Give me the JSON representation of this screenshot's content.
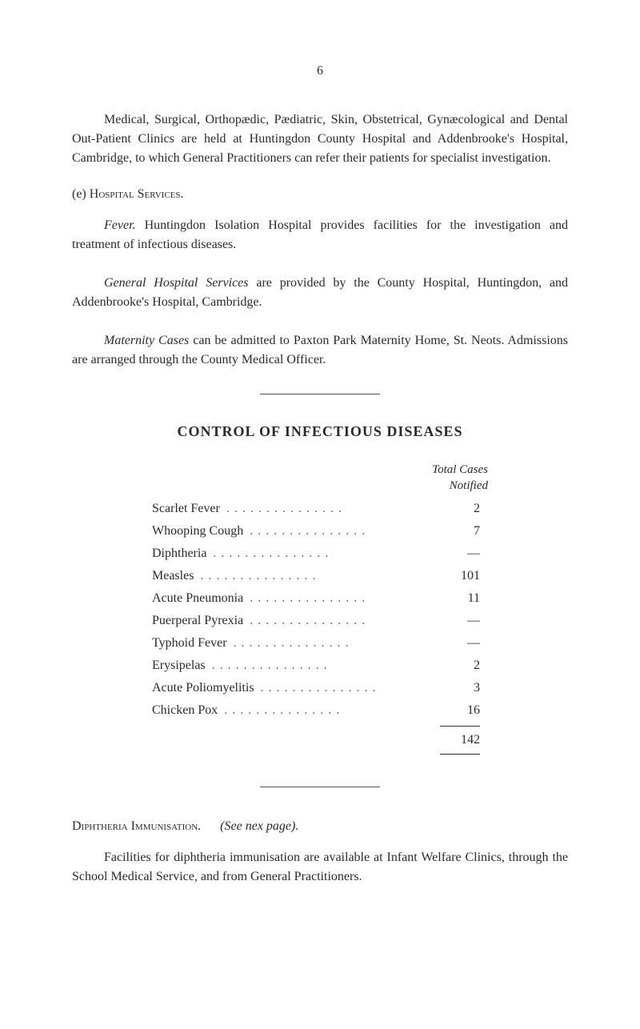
{
  "page_number": "6",
  "paragraphs": {
    "p1": "Medical, Surgical, Orthopædic, Pædiatric, Skin, Obstetrical, Gynæcological and Dental Out-Patient Clinics are held at Huntingdon County Hospital and Addenbrooke's Hospital, Cambridge, to which General Practitioners can refer their patients for specialist investigation.",
    "section_e_label": "(e)",
    "section_e_title": "Hospital Services.",
    "p2_lead": "Fever.",
    "p2_rest": "Huntingdon Isolation Hospital provides facilities for the investigation and treatment of infectious diseases.",
    "p3_lead": "General Hospital Services",
    "p3_rest": "are provided by the County Hospital, Huntingdon, and Addenbrooke's Hospital, Cambridge.",
    "p4_lead": "Maternity Cases",
    "p4_rest": "can be admitted to Paxton Park Maternity Home, St. Neots. Admissions are arranged through the County Medical Officer."
  },
  "heading": "CONTROL OF INFECTIOUS DISEASES",
  "table": {
    "header_line1": "Total Cases",
    "header_line2": "Notified",
    "rows": [
      {
        "label": "Scarlet Fever",
        "value": "2"
      },
      {
        "label": "Whooping Cough",
        "value": "7"
      },
      {
        "label": "Diphtheria",
        "value": "—"
      },
      {
        "label": "Measles",
        "value": "101"
      },
      {
        "label": "Acute Pneumonia",
        "value": "11"
      },
      {
        "label": "Puerperal Pyrexia",
        "value": "—"
      },
      {
        "label": "Typhoid Fever",
        "value": "—"
      },
      {
        "label": "Erysipelas",
        "value": "2"
      },
      {
        "label": "Acute Poliomyelitis",
        "value": "3"
      },
      {
        "label": "Chicken Pox",
        "value": "16"
      }
    ],
    "total": "142"
  },
  "footer": {
    "section_title": "Diphtheria Immunisation.",
    "section_note": "(See nex page).",
    "paragraph": "Facilities for diphtheria immunisation are available at Infant Welfare Clinics, through the School Medical Service, and from General Practitioners."
  }
}
